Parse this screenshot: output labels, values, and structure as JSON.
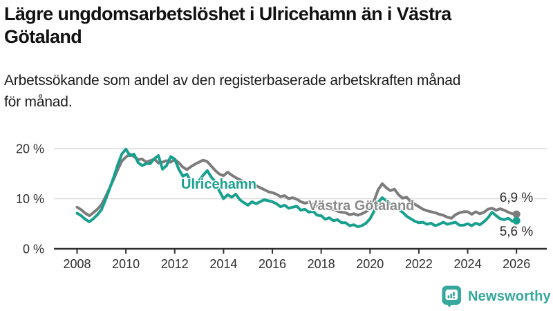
{
  "header": {
    "title_line1": "Lägre ungdomsarbetslöshet i Ulricehamn än i Västra",
    "title_line2": "Götaland",
    "subtitle_line1": "Arbetssökande som andel av den registerbaserade arbetskraften månad",
    "subtitle_line2": "för månad."
  },
  "chart_data": {
    "type": "line",
    "title": "Lägre ungdomsarbetslöshet i Ulricehamn än i Västra Götaland",
    "subtitle": "Arbetssökande som andel av den registerbaserade arbetskraften månad för månad.",
    "x_start_year": 2008,
    "x_end_year": 2026,
    "x_step_months": 2,
    "x_ticks": [
      2008,
      2010,
      2012,
      2014,
      2016,
      2018,
      2020,
      2022,
      2024,
      2026
    ],
    "y_ticks": [
      {
        "value": 0,
        "label": "0 %"
      },
      {
        "value": 10,
        "label": "10 %"
      },
      {
        "value": 20,
        "label": "20 %"
      }
    ],
    "ylim": [
      0,
      22
    ],
    "grid": "horizontal",
    "legend_position": "inline-labels",
    "series": [
      {
        "name": "Västra Götaland",
        "color": "#7c7c7c",
        "end_label": "6,9 %",
        "end_value": 6.9,
        "values": [
          8.3,
          7.8,
          7.1,
          6.6,
          7.2,
          7.9,
          8.8,
          10.4,
          12.1,
          13.9,
          15.8,
          17.5,
          18.3,
          18.9,
          18.4,
          17.8,
          17.9,
          17.3,
          17.6,
          17.9,
          17.1,
          17.3,
          17.6,
          17.3,
          17.8,
          17.2,
          16.3,
          15.8,
          16.4,
          16.9,
          17.3,
          17.7,
          17.4,
          16.5,
          15.6,
          14.9,
          14.6,
          15.3,
          14.7,
          14.2,
          13.8,
          13.3,
          12.9,
          13.2,
          12.6,
          12.2,
          11.8,
          11.4,
          11.2,
          10.9,
          10.4,
          10.6,
          10.0,
          10.2,
          9.9,
          9.4,
          9.1,
          9.3,
          8.8,
          8.5,
          8.6,
          8.1,
          7.8,
          7.9,
          7.5,
          7.3,
          7.2,
          6.8,
          7.0,
          6.7,
          7.0,
          7.4,
          8.0,
          9.6,
          11.8,
          13.0,
          12.2,
          11.6,
          11.9,
          10.8,
          10.1,
          10.3,
          9.4,
          8.9,
          8.4,
          7.9,
          7.6,
          7.4,
          7.2,
          6.9,
          6.7,
          6.3,
          6.1,
          6.8,
          7.2,
          7.4,
          7.4,
          6.9,
          7.4,
          7.0,
          7.3,
          7.9,
          8.1,
          7.7,
          8.0,
          7.7,
          7.3,
          7.0,
          6.9
        ]
      },
      {
        "name": "Ulricehamn",
        "color": "#18a08f",
        "end_label": "5,6 %",
        "end_value": 5.6,
        "values": [
          7.1,
          6.6,
          5.9,
          5.4,
          6.0,
          6.8,
          7.8,
          9.8,
          12.0,
          14.3,
          16.8,
          18.9,
          19.9,
          18.6,
          18.9,
          17.2,
          16.6,
          17.0,
          17.0,
          18.0,
          18.6,
          15.9,
          16.6,
          18.4,
          17.9,
          15.9,
          14.5,
          14.9,
          13.4,
          13.0,
          13.6,
          14.7,
          15.6,
          14.3,
          13.4,
          11.5,
          10.0,
          10.8,
          10.3,
          10.9,
          9.8,
          9.2,
          8.7,
          9.4,
          9.0,
          9.4,
          9.8,
          9.6,
          9.4,
          9.0,
          8.4,
          8.7,
          8.1,
          8.3,
          8.5,
          7.7,
          7.9,
          7.3,
          7.5,
          6.7,
          6.6,
          5.9,
          6.2,
          5.6,
          5.8,
          5.2,
          5.2,
          4.6,
          4.8,
          4.4,
          4.6,
          5.1,
          6.0,
          7.5,
          9.3,
          10.2,
          9.6,
          9.0,
          8.7,
          7.9,
          7.3,
          6.5,
          6.0,
          5.5,
          5.2,
          5.3,
          4.9,
          5.1,
          4.6,
          4.9,
          5.3,
          4.9,
          5.1,
          5.3,
          4.7,
          4.7,
          5.0,
          4.6,
          5.1,
          4.8,
          5.4,
          6.2,
          7.3,
          6.6,
          6.0,
          5.8,
          6.1,
          5.5,
          5.6
        ]
      }
    ]
  },
  "colors": {
    "accent_teal": "#18a08f",
    "series_gray": "#7c7c7c",
    "grid": "#d9d9d9",
    "axis": "#2e2e2e",
    "text": "#1a1a1a",
    "logo_teal": "#35a79c"
  },
  "footer": {
    "brand": "Newsworthy",
    "logo_icon": "bar-chart-speech-bubble-icon"
  }
}
